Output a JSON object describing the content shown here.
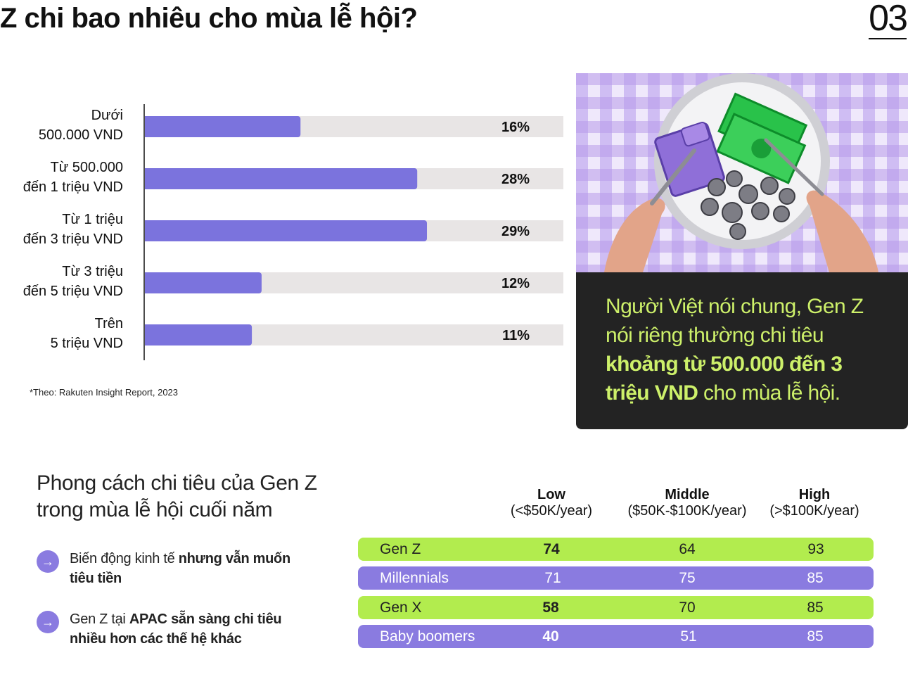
{
  "header": {
    "title": "Z chi bao nhiêu cho mùa lễ hội?",
    "page_number": "03"
  },
  "chart_data": {
    "type": "bar",
    "orientation": "horizontal",
    "categories": [
      [
        "Dưới",
        "500.000 VND"
      ],
      [
        "Từ 500.000",
        "đến 1 triệu VND"
      ],
      [
        "Từ 1 triệu",
        "đến 3 triệu VND"
      ],
      [
        "Từ 3 triệu",
        "đến 5 triệu VND"
      ],
      [
        "Trên",
        "5 triệu VND"
      ]
    ],
    "values": [
      16,
      28,
      29,
      12,
      11
    ],
    "value_labels": [
      "16%",
      "28%",
      "29%",
      "12%",
      "11%"
    ],
    "unit": "%",
    "xlim": [
      0,
      35
    ],
    "grid": false,
    "colors": {
      "bar": "#7b73dd",
      "track": "#e8e5e5"
    }
  },
  "source_note": "*Theo: Rakuten Insight Report, 2023",
  "photo": {
    "icon": "plate-money-photo",
    "colors": {
      "check": "#b79ae8",
      "bills": "#3ccf5a"
    }
  },
  "callout": {
    "text_1": "Người Việt nói chung, Gen Z nói riêng thường chi tiêu ",
    "highlight": "khoảng từ 500.000 đến 3 triệu VND",
    "text_2": " cho mùa lễ hội."
  },
  "section": {
    "subheading": "Phong cách chi tiêu của Gen Z trong mùa lễ hội cuối năm",
    "points": [
      {
        "icon": "arrow-right-icon",
        "text": "Biến động kinh tế ",
        "bold": "nhưng vẫn muốn tiêu tiền"
      },
      {
        "icon": "arrow-right-icon",
        "text": "Gen Z tại ",
        "bold": "APAC sẵn sàng chi tiêu nhiều hơn các thế hệ khác"
      }
    ]
  },
  "table": {
    "columns": [
      {
        "name": "Low",
        "range": "(<$50K/year)"
      },
      {
        "name": "Middle",
        "range": "($50K-$100K/year)"
      },
      {
        "name": "High",
        "range": "(>$100K/year)"
      }
    ],
    "rows": [
      {
        "generation": "Gen Z",
        "values": [
          "74",
          "64",
          "93"
        ],
        "style": "green"
      },
      {
        "generation": "Millennials",
        "values": [
          "71",
          "75",
          "85"
        ],
        "style": "purple"
      },
      {
        "generation": "Gen X",
        "values": [
          "58",
          "70",
          "85"
        ],
        "style": "green"
      },
      {
        "generation": "Baby boomers",
        "values": [
          "40",
          "51",
          "85"
        ],
        "style": "purple"
      }
    ],
    "colors": {
      "green": "#b2ec4e",
      "purple": "#8a7be0"
    }
  }
}
